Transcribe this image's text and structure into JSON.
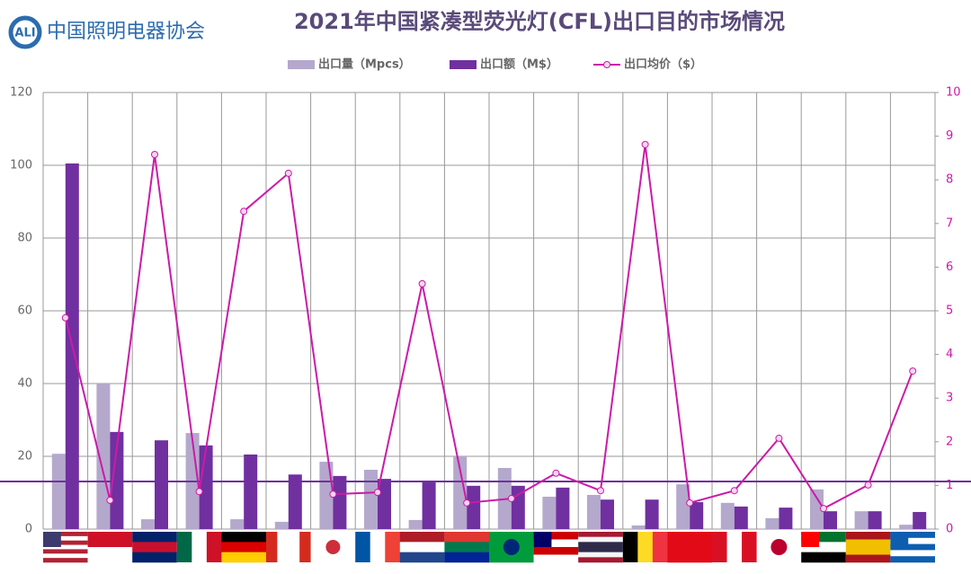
{
  "logo": {
    "mark": "ALI",
    "name": "中国照明电器协会"
  },
  "chart_data": {
    "type": "bar-line",
    "title": "2021年中国紧凑型荧光灯(CFL)出口目的市场情况",
    "categories": [
      null,
      null,
      null,
      null,
      null,
      null,
      null,
      null,
      null,
      null,
      null,
      null,
      null,
      null,
      null,
      null,
      null,
      null,
      null,
      null
    ],
    "series": [
      {
        "name": "出口量（Mpcs）",
        "color": "#b4a8cc",
        "kind": "bar",
        "values": [
          20.7,
          40,
          2.7,
          26.4,
          2.7,
          2,
          18.5,
          16.3,
          2.5,
          20,
          16.8,
          8.9,
          9.4,
          1,
          12.3,
          7.2,
          3,
          10.9,
          4.9,
          1.2
        ]
      },
      {
        "name": "出口额（M$）",
        "color": "#7030a0",
        "kind": "bar",
        "values": [
          100.5,
          26.7,
          24.4,
          23,
          20.5,
          15,
          14.6,
          13.8,
          13.3,
          11.9,
          11.9,
          11.4,
          8.1,
          8.1,
          7.4,
          6.2,
          5.9,
          4.9,
          4.9,
          4.7
        ]
      },
      {
        "name": "出口均价（$）",
        "color": "#cc1aa8",
        "kind": "line",
        "axis": "y2",
        "values": [
          4.84,
          0.66,
          8.58,
          0.86,
          7.28,
          8.15,
          0.8,
          0.84,
          5.62,
          0.6,
          0.7,
          1.28,
          0.88,
          8.81,
          0.6,
          0.88,
          2.08,
          0.47,
          1.01,
          3.62
        ]
      }
    ],
    "ylim": [
      0,
      120
    ],
    "yticks": [
      0,
      20,
      40,
      60,
      80,
      100,
      120
    ],
    "y2lim": [
      0,
      10
    ],
    "y2ticks": [
      0,
      1,
      2,
      3,
      4,
      5,
      6,
      7,
      8,
      9,
      10
    ],
    "y2_hline": 1.09,
    "hline_color": "#7030a0",
    "grid": true,
    "legend": "top"
  }
}
